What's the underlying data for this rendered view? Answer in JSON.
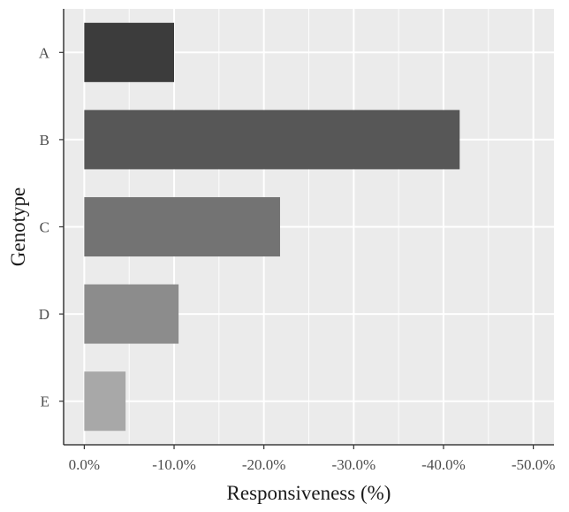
{
  "chart_data": {
    "type": "bar",
    "orientation": "horizontal",
    "categories": [
      "A",
      "B",
      "C",
      "D",
      "E"
    ],
    "values": [
      -10.0,
      -41.8,
      -21.8,
      -10.5,
      -4.6
    ],
    "bar_colors": [
      "#3c3c3c",
      "#575757",
      "#737373",
      "#8c8c8c",
      "#a8a8a8"
    ],
    "xlabel": "Responsiveness (%)",
    "ylabel": "Genotype",
    "xlim": [
      2.3,
      -52.3
    ],
    "xticks": [
      0,
      -10,
      -20,
      -30,
      -40,
      -50
    ],
    "xtick_labels": [
      "0.0%",
      "-10.0%",
      "-20.0%",
      "-30.0%",
      "-40.0%",
      "-50.0%"
    ],
    "grid": true,
    "panel_background": "#ebebeb",
    "grid_color": "#ffffff"
  }
}
